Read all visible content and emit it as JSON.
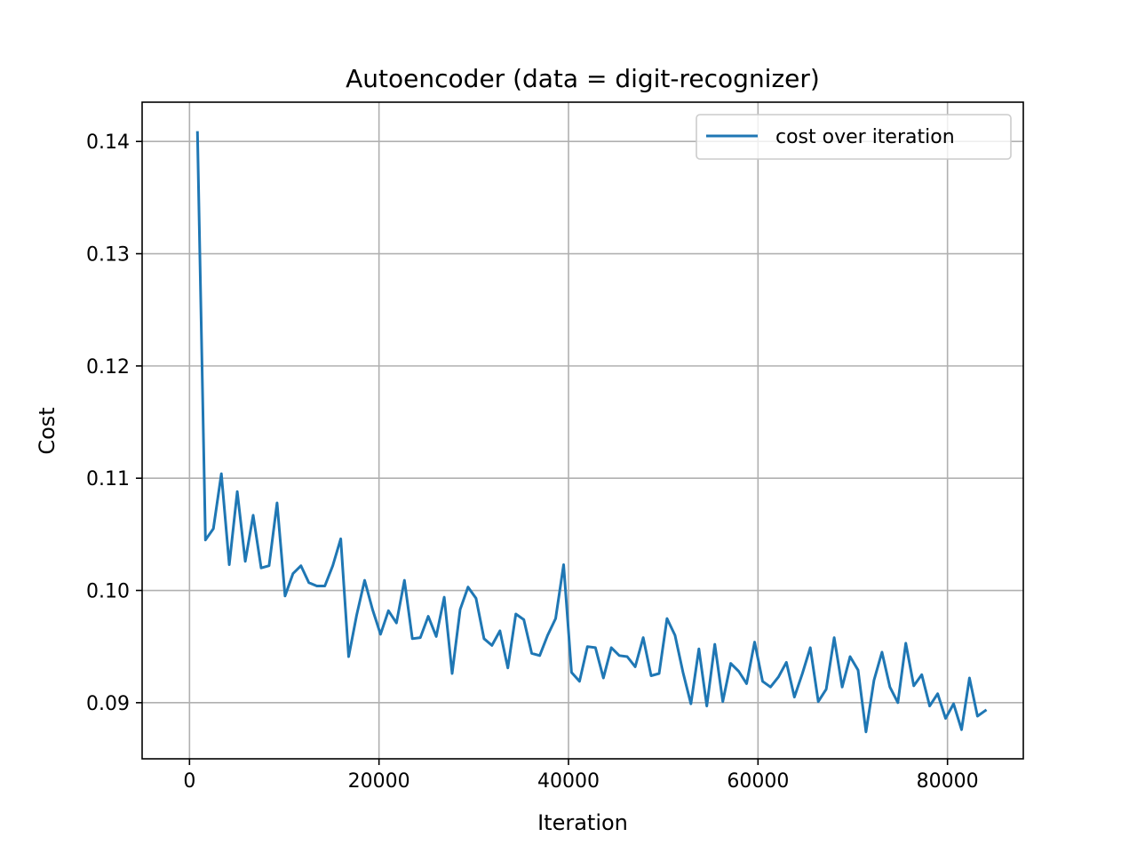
{
  "chart_data": {
    "type": "line",
    "title": "Autoencoder (data = digit-recognizer)",
    "xlabel": "Iteration",
    "ylabel": "Cost",
    "xlim": [
      -5000,
      88000
    ],
    "ylim": [
      0.085,
      0.1435
    ],
    "xticks": [
      0,
      20000,
      40000,
      60000,
      80000
    ],
    "xtick_labels": [
      "0",
      "20000",
      "40000",
      "60000",
      "80000"
    ],
    "yticks": [
      0.09,
      0.1,
      0.11,
      0.12,
      0.13,
      0.14
    ],
    "ytick_labels": [
      "0.09",
      "0.10",
      "0.11",
      "0.12",
      "0.13",
      "0.14"
    ],
    "grid": true,
    "legend_position": "top-right",
    "series": [
      {
        "name": "cost over iteration",
        "color": "#1f77b4",
        "x": [
          840,
          1680,
          2520,
          3360,
          4200,
          5040,
          5880,
          6720,
          7560,
          8400,
          9240,
          10080,
          10920,
          11760,
          12600,
          13440,
          14280,
          15120,
          15960,
          16800,
          17640,
          18480,
          19320,
          20160,
          21000,
          21840,
          22680,
          23520,
          24360,
          25200,
          26040,
          26880,
          27720,
          28560,
          29400,
          30240,
          31080,
          31920,
          32760,
          33600,
          34440,
          35280,
          36120,
          36960,
          37800,
          38640,
          39480,
          40320,
          41160,
          42000,
          42840,
          43680,
          44520,
          45360,
          46200,
          47040,
          47880,
          48720,
          49560,
          50400,
          51240,
          52080,
          52920,
          53760,
          54600,
          55440,
          56280,
          57120,
          57960,
          58800,
          59640,
          60480,
          61320,
          62160,
          63000,
          63840,
          64680,
          65520,
          66360,
          67200,
          68040,
          68880,
          69720,
          70560,
          71400,
          72240,
          73080,
          73920,
          74760,
          75600,
          76440,
          77280,
          78120,
          78960,
          79800,
          80640,
          81480,
          82320,
          83160,
          84000
        ],
        "values": [
          0.1408,
          0.1045,
          0.1055,
          0.1104,
          0.1023,
          0.1088,
          0.1026,
          0.1067,
          0.102,
          0.1022,
          0.1078,
          0.0995,
          0.1015,
          0.1022,
          0.1007,
          0.1004,
          0.1004,
          0.1022,
          0.1046,
          0.0941,
          0.0978,
          0.1009,
          0.0983,
          0.0961,
          0.0982,
          0.0971,
          0.1009,
          0.0957,
          0.0958,
          0.0977,
          0.0959,
          0.0994,
          0.0926,
          0.0983,
          0.1003,
          0.0993,
          0.0957,
          0.0951,
          0.0964,
          0.0931,
          0.0979,
          0.0974,
          0.0944,
          0.0942,
          0.096,
          0.0975,
          0.1023,
          0.0927,
          0.0919,
          0.095,
          0.0949,
          0.0922,
          0.0949,
          0.0942,
          0.0941,
          0.0932,
          0.0958,
          0.0924,
          0.0926,
          0.0975,
          0.096,
          0.0927,
          0.0899,
          0.0948,
          0.0897,
          0.0952,
          0.0901,
          0.0935,
          0.0928,
          0.0917,
          0.0954,
          0.0919,
          0.0914,
          0.0923,
          0.0936,
          0.0905,
          0.0926,
          0.0949,
          0.0901,
          0.0912,
          0.0958,
          0.0914,
          0.0941,
          0.0929,
          0.0874,
          0.092,
          0.0945,
          0.0914,
          0.09,
          0.0953,
          0.0915,
          0.0925,
          0.0897,
          0.0908,
          0.0886,
          0.0899,
          0.0876,
          0.0922,
          0.0888,
          0.0893
        ]
      }
    ]
  }
}
